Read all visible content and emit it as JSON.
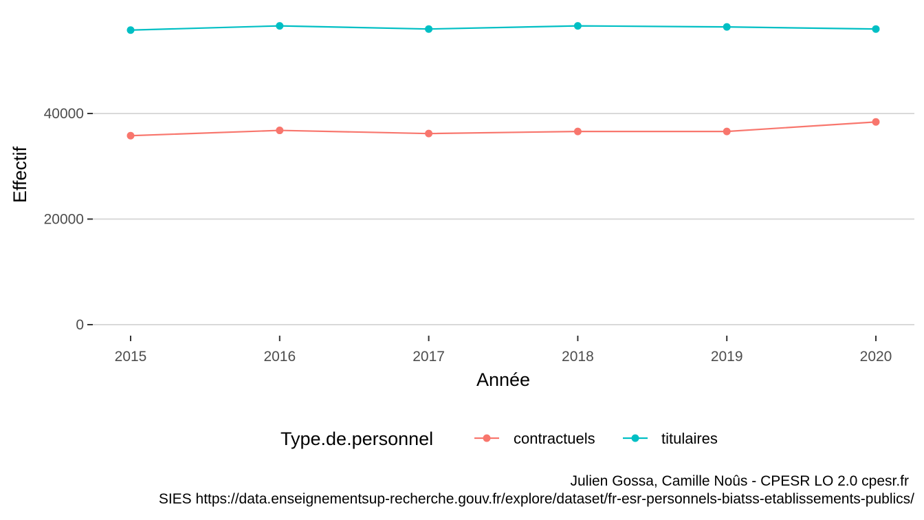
{
  "chart_data": {
    "type": "line",
    "x": [
      2015,
      2016,
      2017,
      2018,
      2019,
      2020
    ],
    "x_tick_labels": [
      "2015",
      "2016",
      "2017",
      "2018",
      "2019",
      "2020"
    ],
    "xlabel": "Année",
    "ylabel": "Effectif",
    "y_ticks": [
      0,
      20000,
      40000
    ],
    "y_tick_labels": [
      "0",
      "20000",
      "40000"
    ],
    "xlim": [
      2014.75,
      2020.25
    ],
    "ylim": [
      0,
      58000
    ],
    "grid": true,
    "legend": {
      "title": "Type.de.personnel",
      "position": "bottom"
    },
    "series": [
      {
        "name": "contractuels",
        "color": "#F8766D",
        "values": [
          35800,
          36800,
          36200,
          36600,
          36600,
          38400
        ]
      },
      {
        "name": "titulaires",
        "color": "#00BFC4",
        "values": [
          55800,
          56600,
          56000,
          56600,
          56400,
          56000
        ]
      }
    ],
    "caption": [
      "Julien Gossa, Camille Noûs - CPESR LO 2.0 cpesr.fr",
      "SIES https://data.enseignementsup-recherche.gouv.fr/explore/dataset/fr-esr-personnels-biatss-etablissements-publics/"
    ]
  }
}
